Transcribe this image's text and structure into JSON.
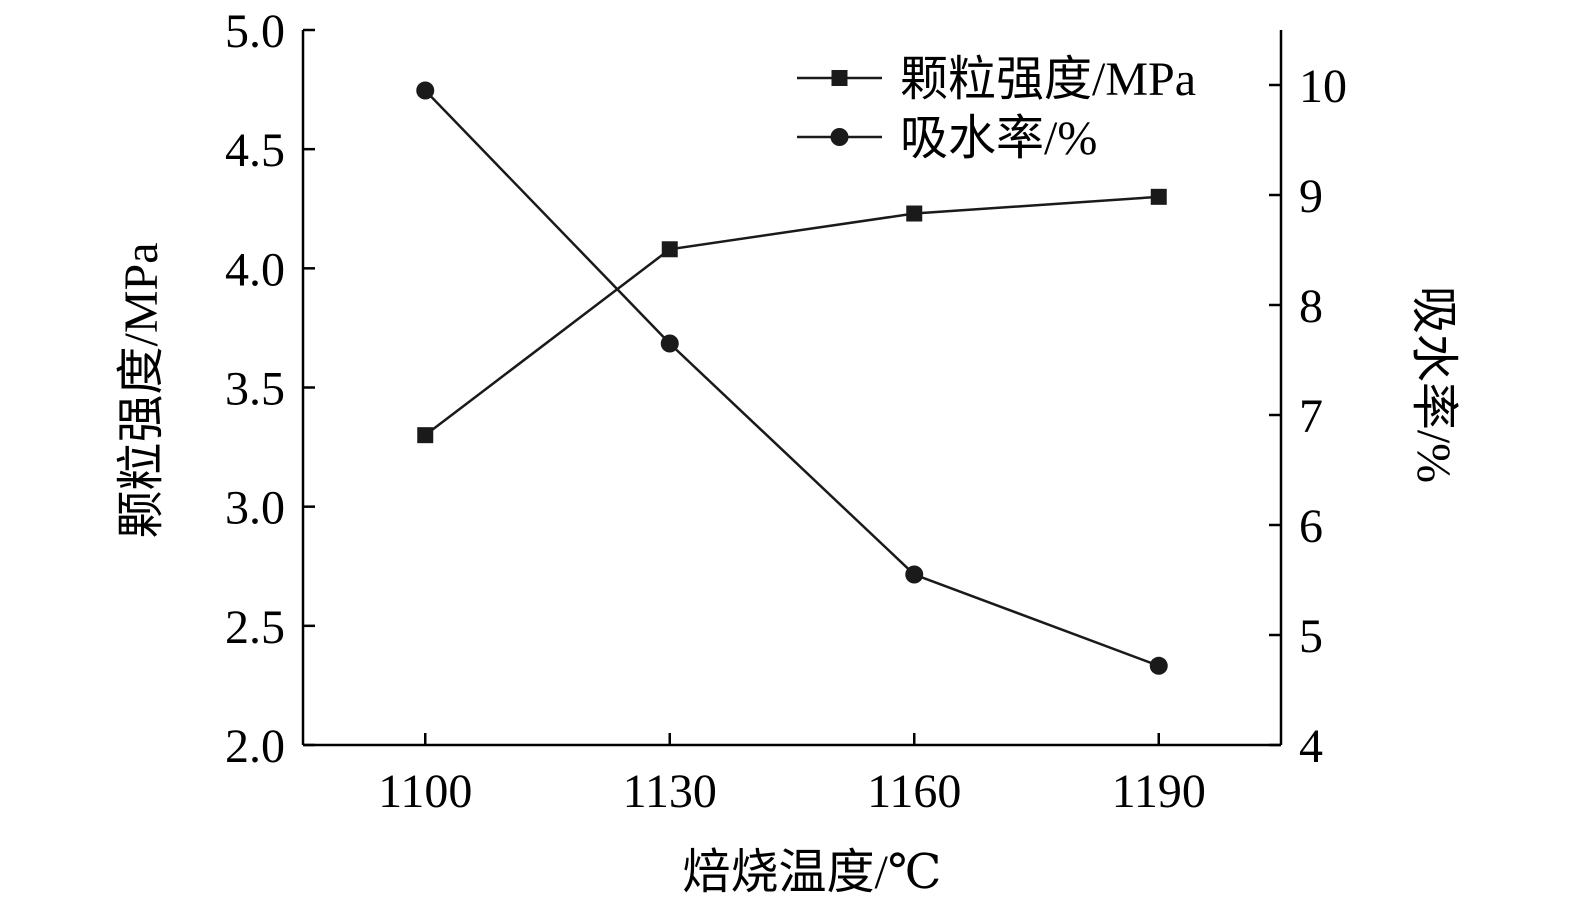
{
  "chart_data": {
    "type": "line",
    "title": "",
    "x": [
      1100,
      1130,
      1160,
      1190
    ],
    "xlabel": "焙烧温度/℃",
    "xticks": [
      "1100",
      "1130",
      "1160",
      "1190"
    ],
    "xlim": [
      1085,
      1205
    ],
    "left_axis": {
      "label": "颗粒强度/MPa",
      "ylim": [
        2.0,
        5.0
      ],
      "ticks": [
        "2.0",
        "2.5",
        "3.0",
        "3.5",
        "4.0",
        "4.5",
        "5.0"
      ]
    },
    "right_axis": {
      "label": "吸水率/%",
      "ylim": [
        4,
        10.5
      ],
      "ticks": [
        "4",
        "5",
        "6",
        "7",
        "8",
        "9",
        "10"
      ]
    },
    "series": [
      {
        "name": "颗粒强度/MPa",
        "axis": "left",
        "marker": "square",
        "values": [
          3.3,
          4.08,
          4.23,
          4.3
        ]
      },
      {
        "name": "吸水率/%",
        "axis": "right",
        "marker": "circle",
        "values": [
          9.95,
          7.65,
          5.55,
          4.72
        ]
      }
    ],
    "legend_position": "top-right",
    "grid": false,
    "colors": {
      "line": "#1a1a1a",
      "marker": "#1a1a1a",
      "axis": "#000000"
    }
  }
}
